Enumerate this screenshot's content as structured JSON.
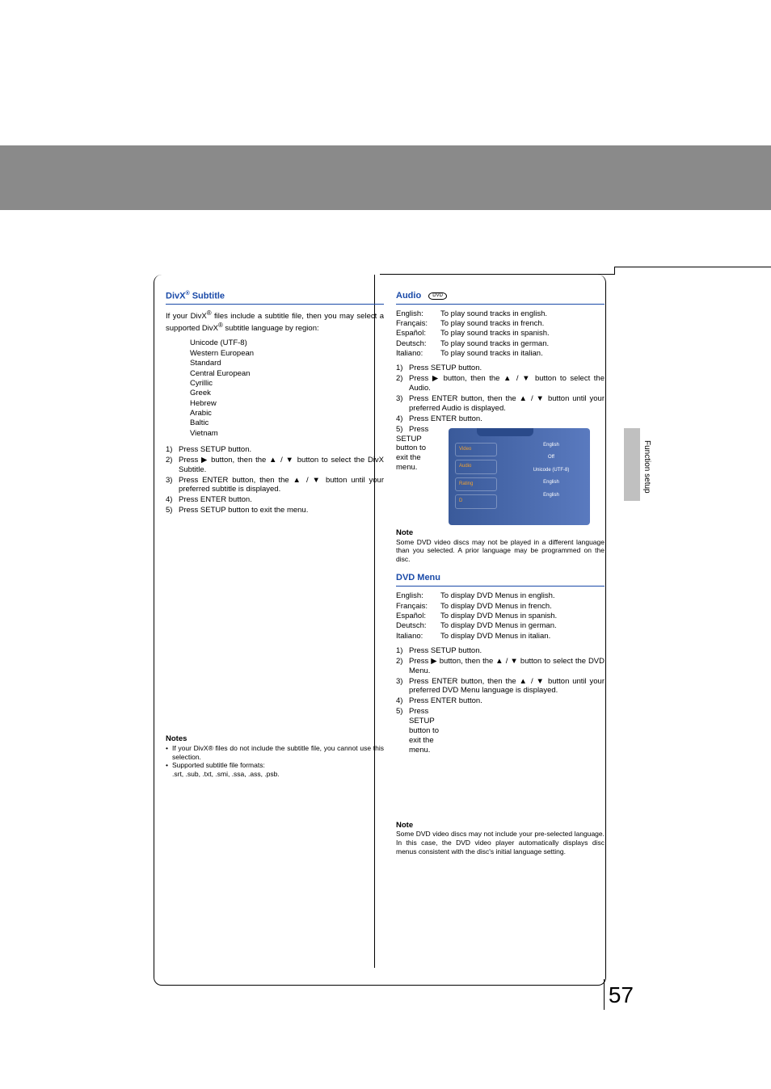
{
  "page_number": "57",
  "side_label": "Function setup",
  "divx": {
    "heading_pre": "DivX",
    "heading_post": " Subtitle",
    "intro_pre": "If your DivX",
    "intro_mid": " files include a subtitle file, then you may select a supported DivX",
    "intro_post": " subtitle language by region:",
    "regions": [
      "Unicode (UTF-8)",
      "Western European",
      "Standard",
      "Central European",
      "Cyrillic",
      "Greek",
      "Hebrew",
      "Arabic",
      "Baltic",
      "Vietnam"
    ],
    "steps": [
      "Press SETUP button.",
      "Press ▶ button, then the ▲ / ▼ button to select the DivX Subtitle.",
      "Press ENTER button, then the ▲ / ▼ button until your preferred subtitle is displayed.",
      "Press ENTER button.",
      "Press SETUP button to exit the menu."
    ],
    "notes_heading": "Notes",
    "notes": [
      "If your DivX® files do not include the subtitle file, you cannot use this selection.",
      "Supported subtitle file formats:"
    ],
    "formats": ".srt, .sub, .txt, .smi, .ssa, .ass, .psb."
  },
  "audio": {
    "heading": "Audio",
    "icon_label": "DVD",
    "langs": [
      {
        "lang": "English:",
        "desc": "To play sound tracks in english."
      },
      {
        "lang": "Français:",
        "desc": "To play sound tracks in french."
      },
      {
        "lang": "Español:",
        "desc": "To play sound tracks in spanish."
      },
      {
        "lang": "Deutsch:",
        "desc": "To play sound tracks in german."
      },
      {
        "lang": "Italiano:",
        "desc": "To play sound tracks in italian."
      }
    ],
    "steps": [
      "Press SETUP button.",
      "Press ▶ button, then the ▲ / ▼ button to select the Audio.",
      "Press ENTER button, then the ▲ / ▼ button until your preferred Audio is displayed.",
      "Press ENTER button."
    ],
    "step5_lines": [
      "Press",
      "SETUP",
      "button to",
      "exit the",
      "menu."
    ],
    "note_heading": "Note",
    "note_text": "Some DVD video discs may not be played in a different language than you selected. A prior language may be programmed on the disc."
  },
  "dvdmenu": {
    "heading": "DVD Menu",
    "langs": [
      {
        "lang": "English:",
        "desc": "To display DVD Menus in english."
      },
      {
        "lang": "Français:",
        "desc": "To display DVD Menus in french."
      },
      {
        "lang": "Español:",
        "desc": "To display DVD Menus in spanish."
      },
      {
        "lang": "Deutsch:",
        "desc": "To display DVD Menus in german."
      },
      {
        "lang": "Italiano:",
        "desc": "To display DVD Menus in italian."
      }
    ],
    "steps": [
      "Press SETUP button.",
      "Press ▶ button, then the ▲ / ▼ button to select the DVD Menu.",
      "Press ENTER button, then the ▲ / ▼ button until your preferred DVD Menu language is displayed.",
      "Press ENTER button."
    ],
    "step5_lines": [
      "Press",
      "SETUP",
      "button to",
      "exit the",
      "menu."
    ],
    "note_heading": "Note",
    "note_text": "Some DVD video discs may not include your pre-selected language. In this case, the DVD video player automatically displays disc menus consistent with the disc's initial language setting."
  },
  "menu_screenshot": {
    "bg_gradient_left": "#3a5a9a",
    "bg_gradient_right": "#5a7abf",
    "left_items": [
      "Video",
      "Audio",
      "Rating",
      "D"
    ],
    "right_values": [
      "English",
      "Off",
      "Unicode (UTF-8)",
      "English",
      "English"
    ]
  },
  "colors": {
    "heading_color": "#1a4aa8",
    "banner_color": "#8a8a8a",
    "sidetab_color": "#c0c0c0",
    "menu_orange": "#f0a030"
  }
}
